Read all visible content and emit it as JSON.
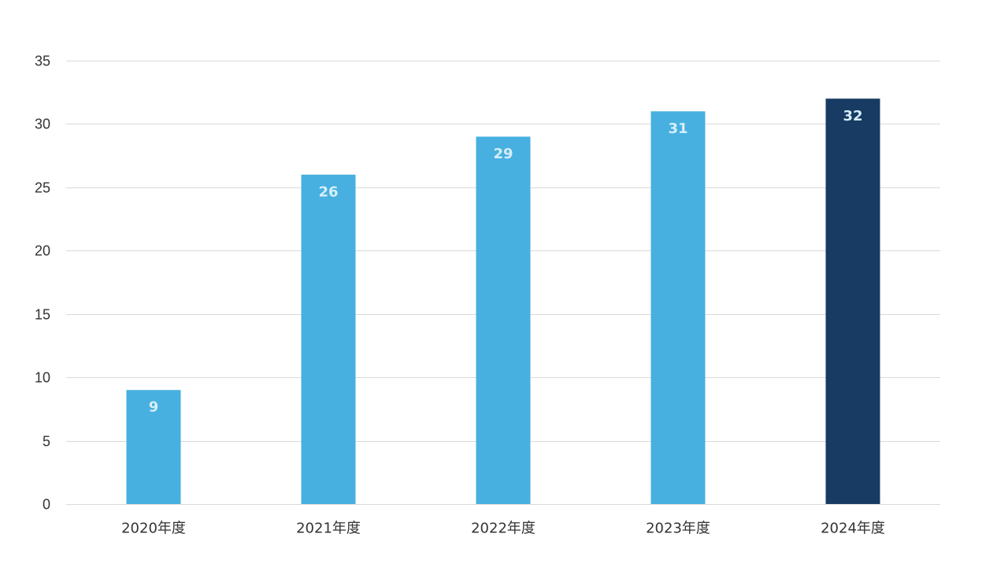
{
  "chart_data": {
    "type": "bar",
    "categories": [
      "2020年度",
      "2021年度",
      "2022年度",
      "2023年度",
      "2024年度"
    ],
    "values": [
      9,
      26,
      29,
      31,
      32
    ],
    "title": "",
    "xlabel": "",
    "ylabel": "",
    "ylim": [
      0,
      35
    ],
    "yticks": [
      0,
      5,
      10,
      15,
      20,
      25,
      30,
      35
    ],
    "grid": true,
    "legend": "none",
    "data_labels": [
      "9",
      "26",
      "29",
      "31",
      "32"
    ],
    "colors": {
      "bar": "#47b0e0",
      "highlight_bar": "#173b62",
      "data_label": "#d6eef9",
      "grid": "#d9d9d9",
      "text": "#333333"
    },
    "highlight_index": 4
  }
}
